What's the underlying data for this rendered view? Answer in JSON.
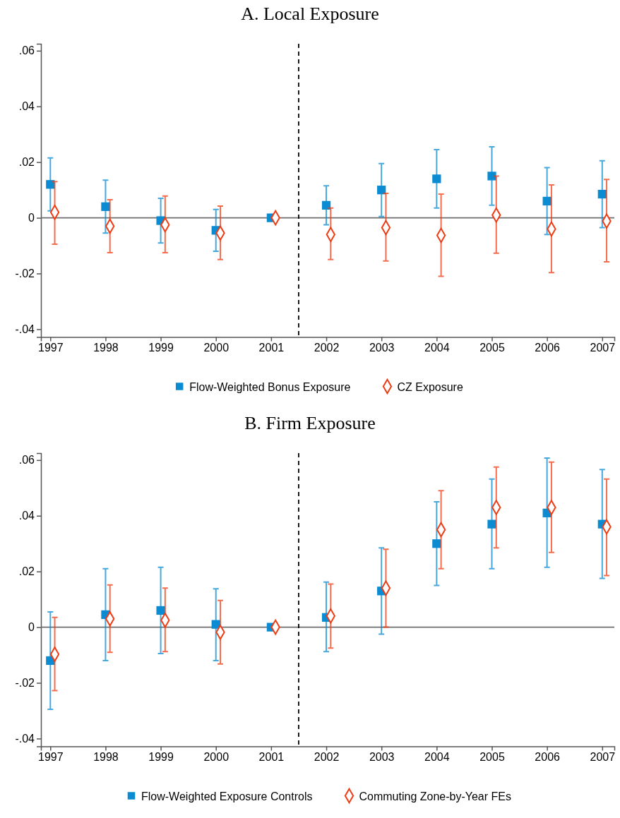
{
  "chart_data": [
    {
      "type": "scatter",
      "title": "A. Local Exposure",
      "x": [
        1997,
        1998,
        1999,
        2000,
        2001,
        2002,
        2003,
        2004,
        2005,
        2006,
        2007
      ],
      "xlim": [
        1996.83,
        2007.22
      ],
      "xticks": [
        1997,
        1998,
        1999,
        2000,
        2001,
        2002,
        2003,
        2004,
        2005,
        2006,
        2007
      ],
      "ylim": [
        -0.0428,
        0.0625
      ],
      "yticks": [
        {
          "value": -0.04,
          "label": "-.04"
        },
        {
          "value": -0.02,
          "label": "-.02"
        },
        0,
        {
          "value": 0.02,
          "label": ".02"
        },
        {
          "value": 0.04,
          "label": ".04"
        },
        {
          "value": 0.06,
          "label": ".06"
        }
      ],
      "grid": false,
      "legend": "bottom",
      "ref_lines": [
        {
          "axis": "y",
          "value": 0,
          "color": "#6e6e6e",
          "line_style": "solid"
        },
        {
          "axis": "x",
          "value": 2001.5,
          "color": "#000000",
          "line_style": "dashed"
        }
      ],
      "series": [
        {
          "name": "Flow-Weighted Bonus Exposure",
          "color": "#0a8bd2",
          "marker": "square",
          "values": [
            0.012,
            0.004,
            -0.001,
            -0.0045,
            0,
            0.0045,
            0.01,
            0.014,
            0.015,
            0.006,
            0.0085
          ],
          "errors": [
            [
              0.0025,
              0.0215
            ],
            [
              -0.0055,
              0.0135
            ],
            [
              -0.009,
              0.007
            ],
            [
              -0.012,
              0.003
            ],
            null,
            [
              -0.0025,
              0.0115
            ],
            [
              0.0005,
              0.0195
            ],
            [
              0.0035,
              0.0245
            ],
            [
              0.0045,
              0.0255
            ],
            [
              -0.006,
              0.018
            ],
            [
              -0.0035,
              0.0205
            ]
          ]
        },
        {
          "name": "CZ Exposure",
          "color": "#f03c14",
          "marker": "diamond",
          "x": [
            1997.08,
            1998.08,
            1999.08,
            2000.08,
            2001.08,
            2002.08,
            2003.08,
            2004.08,
            2005.08,
            2006.08,
            2007.08
          ],
          "values": [
            0.002,
            -0.003,
            -0.0025,
            -0.0055,
            0,
            -0.006,
            -0.0035,
            -0.0063,
            0.001,
            -0.004,
            -0.0012
          ],
          "errors": [
            [
              -0.0095,
              0.013
            ],
            [
              -0.0125,
              0.0065
            ],
            [
              -0.0125,
              0.0078
            ],
            [
              -0.015,
              0.0042
            ],
            null,
            [
              -0.015,
              0.0035
            ],
            [
              -0.0155,
              0.0088
            ],
            [
              -0.021,
              0.0085
            ],
            [
              -0.0127,
              0.015
            ],
            [
              -0.0197,
              0.0118
            ],
            [
              -0.0158,
              0.0138
            ]
          ]
        }
      ]
    },
    {
      "type": "scatter",
      "title": "B. Firm Exposure",
      "x": [
        1997,
        1998,
        1999,
        2000,
        2001,
        2002,
        2003,
        2004,
        2005,
        2006,
        2007
      ],
      "xlim": [
        1996.83,
        2007.22
      ],
      "xticks": [
        1997,
        1998,
        1999,
        2000,
        2001,
        2002,
        2003,
        2004,
        2005,
        2006,
        2007
      ],
      "ylim": [
        -0.0428,
        0.0625
      ],
      "yticks": [
        {
          "value": -0.04,
          "label": "-.04"
        },
        {
          "value": -0.02,
          "label": "-.02"
        },
        0,
        {
          "value": 0.02,
          "label": ".02"
        },
        {
          "value": 0.04,
          "label": ".04"
        },
        {
          "value": 0.06,
          "label": ".06"
        }
      ],
      "grid": false,
      "legend": "bottom",
      "ref_lines": [
        {
          "axis": "y",
          "value": 0,
          "color": "#6e6e6e",
          "line_style": "solid"
        },
        {
          "axis": "x",
          "value": 2001.5,
          "color": "#000000",
          "line_style": "dashed"
        }
      ],
      "series": [
        {
          "name": "Flow-Weighted Exposure Controls",
          "color": "#0a8bd2",
          "marker": "square",
          "values": [
            -0.012,
            0.0045,
            0.006,
            0.001,
            0,
            0.0035,
            0.013,
            0.03,
            0.037,
            0.041,
            0.037
          ],
          "errors": [
            [
              -0.0295,
              0.0055
            ],
            [
              -0.012,
              0.021
            ],
            [
              -0.0095,
              0.0215
            ],
            [
              -0.012,
              0.0138
            ],
            null,
            [
              -0.0088,
              0.0162
            ],
            [
              -0.0025,
              0.0285
            ],
            [
              0.015,
              0.045
            ],
            [
              0.021,
              0.0532
            ],
            [
              0.0215,
              0.0607
            ],
            [
              0.0175,
              0.0566
            ]
          ]
        },
        {
          "name": "Commuting Zone-by-Year FEs",
          "color": "#f03c14",
          "marker": "diamond",
          "x": [
            1997.08,
            1998.08,
            1999.08,
            2000.08,
            2001.08,
            2002.08,
            2003.08,
            2004.08,
            2005.08,
            2006.08,
            2007.08
          ],
          "values": [
            -0.0097,
            0.003,
            0.0025,
            -0.0018,
            0,
            0.004,
            0.014,
            0.035,
            0.043,
            0.043,
            0.036
          ],
          "errors": [
            [
              -0.0228,
              0.0035
            ],
            [
              -0.009,
              0.0152
            ],
            [
              -0.0088,
              0.014
            ],
            [
              -0.0132,
              0.0096
            ],
            null,
            [
              -0.0075,
              0.0155
            ],
            [
              0,
              0.028
            ],
            [
              0.021,
              0.049
            ],
            [
              0.0285,
              0.0575
            ],
            [
              0.0268,
              0.0593
            ],
            [
              0.0185,
              0.0532
            ]
          ]
        }
      ]
    }
  ]
}
